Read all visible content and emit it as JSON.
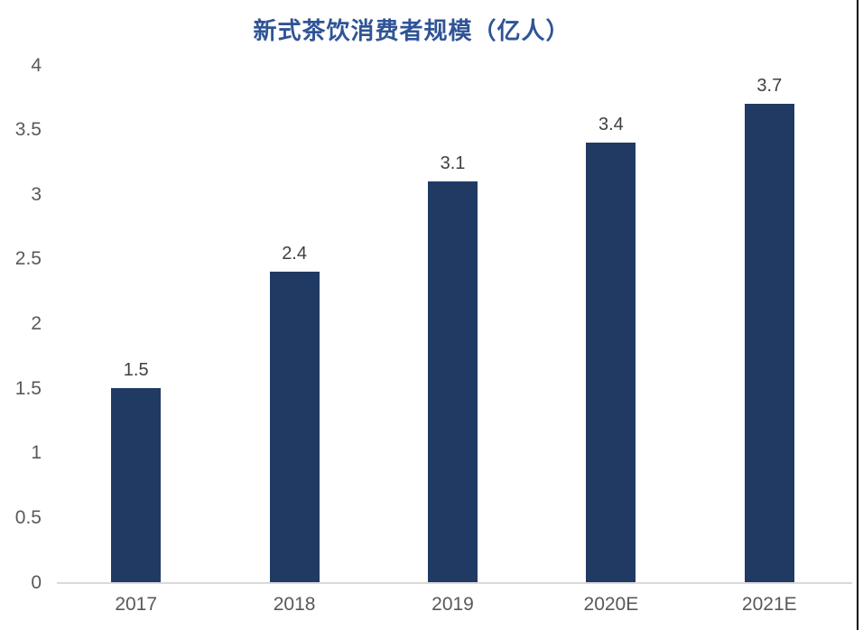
{
  "chart_data": {
    "type": "bar",
    "title": "新式茶饮消费者规模（亿人）",
    "categories": [
      "2017",
      "2018",
      "2019",
      "2020E",
      "2021E"
    ],
    "values": [
      1.5,
      2.4,
      3.1,
      3.4,
      3.7
    ],
    "data_labels": [
      "1.5",
      "2.4",
      "3.1",
      "3.4",
      "3.7"
    ],
    "yticks": [
      "0",
      "0.5",
      "1",
      "1.5",
      "2",
      "2.5",
      "3",
      "3.5",
      "4"
    ],
    "ylim": [
      0,
      4
    ],
    "grid": false,
    "legend_position": "none",
    "xlabel": "",
    "ylabel": "",
    "colors": {
      "bar": "#203A64",
      "title": "#2F5496",
      "axis_tick_label": "#595959",
      "data_label": "#404040",
      "axis_line": "#D9D9D9",
      "right_border": "#000000"
    }
  }
}
